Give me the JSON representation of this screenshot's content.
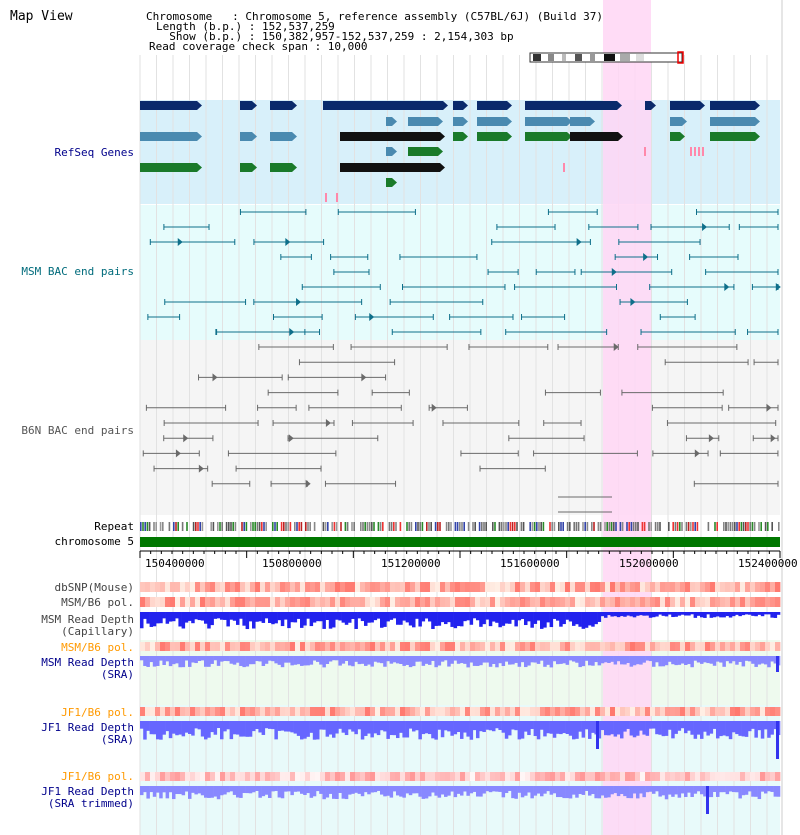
{
  "title": "Map View",
  "info": {
    "line1": "Chromosome   : Chromosome 5, reference assembly (C57BL/6J) (Build 37)",
    "line2": "Length (b.p.) : 152,537,259",
    "line3": "  Show (b.p.) : 150,382,957-152,537,259 : 2,154,303 bp",
    "line4": "Read coverage check span : 10,000"
  },
  "tracks": {
    "refseq": "RefSeq Genes",
    "msm_bac": "MSM BAC end pairs",
    "b6n_bac": "B6N BAC end pairs",
    "repeat": "Repeat",
    "chromosome": "chromosome 5",
    "dbsnp": "dbSNP(Mouse)",
    "msm_b6_pol_1": "MSM/B6 pol.",
    "msm_depth_cap_1": "MSM Read Depth",
    "msm_depth_cap_2": "(Capillary)",
    "msm_b6_pol_2": "MSM/B6 pol.",
    "msm_depth_sra_1": "MSM Read Depth",
    "msm_depth_sra_2": "(SRA)",
    "jf1_b6_pol_1": "JF1/B6 pol.",
    "jf1_depth_sra_1": "JF1 Read Depth",
    "jf1_depth_sra_2": "(SRA)",
    "jf1_b6_pol_2": "JF1/B6 pol.",
    "jf1_depth_trim_1": "JF1 Read Depth",
    "jf1_depth_trim_2": "(SRA trimmed)"
  },
  "axis": {
    "ticks": [
      "150400000",
      "150800000",
      "151200000",
      "151600000",
      "152000000",
      "152400000"
    ]
  },
  "colors": {
    "navy_label": "#00008b",
    "teal_label": "#006b7b",
    "gray_label": "#333333",
    "orange_label": "#ff9900",
    "highlight": "#ffd6f5",
    "refseq_bg": "#d8f0fa",
    "bac_bg": "#e6fcfc",
    "chrom_green": "#007700"
  }
}
